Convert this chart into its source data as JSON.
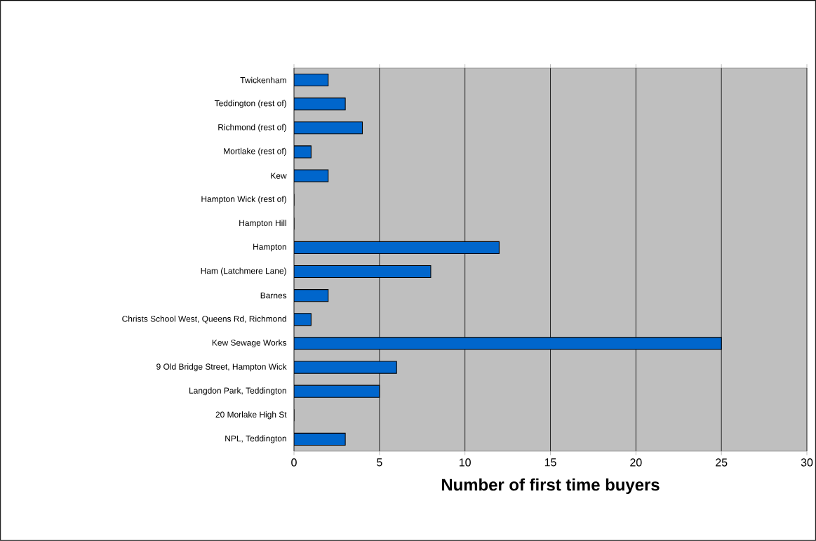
{
  "chart_data": {
    "type": "bar",
    "orientation": "horizontal",
    "categories": [
      "Twickenham",
      "Teddington (rest of)",
      "Richmond (rest of)",
      "Mortlake (rest of)",
      "Kew",
      "Hampton Wick (rest of)",
      "Hampton Hill",
      "Hampton",
      "Ham (Latchmere Lane)",
      "Barnes",
      "Christs School West, Queens Rd, Richmond",
      "Kew Sewage Works",
      "9 Old Bridge Street, Hampton Wick",
      "Langdon Park, Teddington",
      "20 Morlake High St",
      "NPL, Teddington"
    ],
    "values": [
      2,
      3,
      4,
      1,
      2,
      0,
      0,
      12,
      8,
      2,
      1,
      25,
      6,
      5,
      0,
      3
    ],
    "color": "#0066cc",
    "xlabel": "Number of first time buyers",
    "xlim": [
      0,
      30
    ],
    "xticks": [
      0,
      5,
      10,
      15,
      20,
      25,
      30
    ],
    "grid": "x"
  }
}
